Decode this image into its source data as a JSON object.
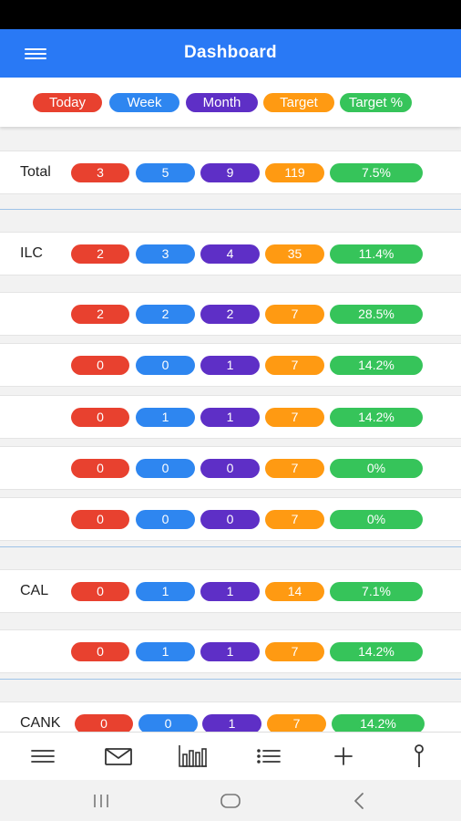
{
  "app": {
    "title": "Dashboard"
  },
  "legend": [
    "Today",
    "Week",
    "Month",
    "Target",
    "Target %"
  ],
  "colors": {
    "today": "#e8412f",
    "week": "#2e86f0",
    "month": "#5e2fc6",
    "target": "#ff9a12",
    "target_pct": "#36c45a",
    "app_bar": "#2979f5"
  },
  "rows": [
    {
      "label": "Total",
      "values": [
        "3",
        "5",
        "9",
        "119",
        "7.5%"
      ]
    },
    {
      "label": "ILC",
      "values": [
        "2",
        "3",
        "4",
        "35",
        "11.4%"
      ]
    },
    {
      "label": "",
      "values": [
        "2",
        "2",
        "2",
        "7",
        "28.5%"
      ]
    },
    {
      "label": "",
      "values": [
        "0",
        "0",
        "1",
        "7",
        "14.2%"
      ]
    },
    {
      "label": "",
      "values": [
        "0",
        "1",
        "1",
        "7",
        "14.2%"
      ]
    },
    {
      "label": "",
      "values": [
        "0",
        "0",
        "0",
        "7",
        "0%"
      ]
    },
    {
      "label": "",
      "values": [
        "0",
        "0",
        "0",
        "7",
        "0%"
      ]
    },
    {
      "label": "CAL",
      "values": [
        "0",
        "1",
        "1",
        "14",
        "7.1%"
      ]
    },
    {
      "label": "",
      "values": [
        "0",
        "1",
        "1",
        "7",
        "14.2%"
      ]
    },
    {
      "label": "CANK",
      "values": [
        "0",
        "0",
        "1",
        "7",
        "14.2%"
      ]
    }
  ],
  "bottom_nav": [
    "menu-icon",
    "mail-icon",
    "bar-chart-icon",
    "list-icon",
    "plus-icon",
    "pin-icon"
  ],
  "system_nav": [
    "recents-icon",
    "home-icon",
    "back-icon"
  ]
}
